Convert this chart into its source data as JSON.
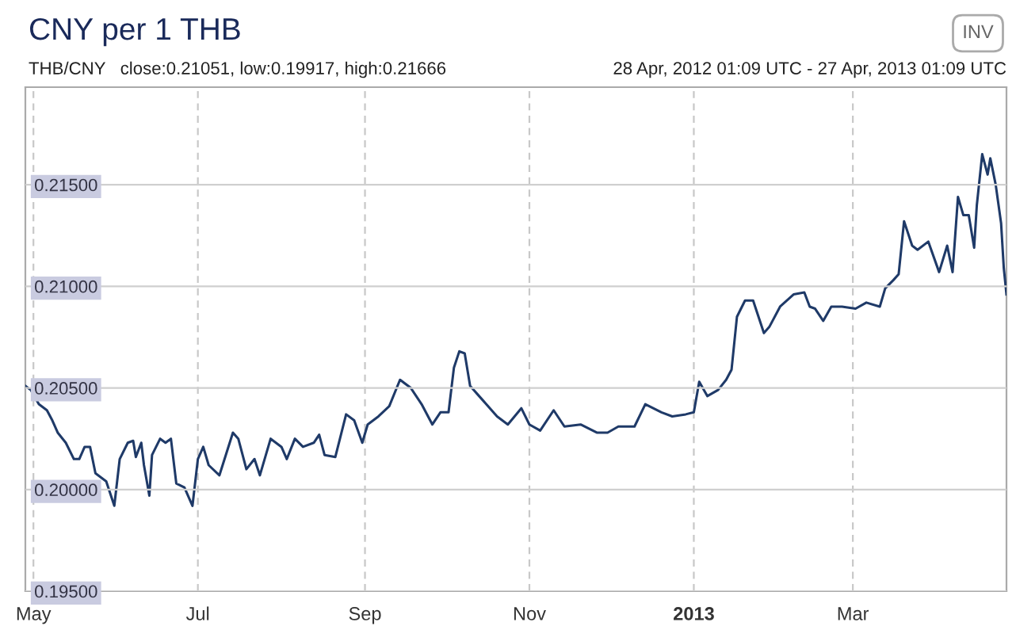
{
  "chart_data": {
    "type": "line",
    "title": "CNY per 1 THB",
    "subtitle": "THB/CNY   close:0.21051, low:0.19917, high:0.21666",
    "annotations": [
      "28 Apr, 2012 01:09 UTC - 27 Apr, 2013 01:09 UTC",
      "INV"
    ],
    "series": [
      {
        "color": "#1f3a68",
        "x": [
          "2012-04-28",
          "2012-04-30",
          "2012-05-03",
          "2012-05-06",
          "2012-05-08",
          "2012-05-10",
          "2012-05-13",
          "2012-05-16",
          "2012-05-18",
          "2012-05-20",
          "2012-05-22",
          "2012-05-24",
          "2012-05-28",
          "2012-05-31",
          "2012-06-02",
          "2012-06-05",
          "2012-06-07",
          "2012-06-08",
          "2012-06-10",
          "2012-06-11",
          "2012-06-13",
          "2012-06-14",
          "2012-06-17",
          "2012-06-19",
          "2012-06-21",
          "2012-06-23",
          "2012-06-26",
          "2012-06-29",
          "2012-07-01",
          "2012-07-03",
          "2012-07-05",
          "2012-07-09",
          "2012-07-14",
          "2012-07-16",
          "2012-07-19",
          "2012-07-22",
          "2012-07-24",
          "2012-07-28",
          "2012-08-01",
          "2012-08-03",
          "2012-08-06",
          "2012-08-09",
          "2012-08-13",
          "2012-08-15",
          "2012-08-17",
          "2012-08-21",
          "2012-08-25",
          "2012-08-28",
          "2012-08-31",
          "2012-09-02",
          "2012-09-06",
          "2012-09-10",
          "2012-09-14",
          "2012-09-18",
          "2012-09-22",
          "2012-09-26",
          "2012-09-29",
          "2012-10-02",
          "2012-10-04",
          "2012-10-06",
          "2012-10-08",
          "2012-10-10",
          "2012-10-14",
          "2012-10-20",
          "2012-10-24",
          "2012-10-29",
          "2012-11-01",
          "2012-11-05",
          "2012-11-10",
          "2012-11-14",
          "2012-11-20",
          "2012-11-26",
          "2012-11-30",
          "2012-12-04",
          "2012-12-10",
          "2012-12-14",
          "2012-12-20",
          "2012-12-24",
          "2012-12-29",
          "2013-01-01",
          "2013-01-03",
          "2013-01-06",
          "2013-01-10",
          "2013-01-13",
          "2013-01-15",
          "2013-01-17",
          "2013-01-20",
          "2013-01-23",
          "2013-01-25",
          "2013-01-27",
          "2013-01-29",
          "2013-02-02",
          "2013-02-07",
          "2013-02-11",
          "2013-02-13",
          "2013-02-15",
          "2013-02-18",
          "2013-02-21",
          "2013-02-25",
          "2013-03-02",
          "2013-03-06",
          "2013-03-11",
          "2013-03-13",
          "2013-03-16",
          "2013-03-18",
          "2013-03-20",
          "2013-03-23",
          "2013-03-25",
          "2013-03-29",
          "2013-04-02",
          "2013-04-05",
          "2013-04-07",
          "2013-04-09",
          "2013-04-11",
          "2013-04-13",
          "2013-04-15",
          "2013-04-16",
          "2013-04-18",
          "2013-04-20",
          "2013-04-21",
          "2013-04-23",
          "2013-04-25",
          "2013-04-26",
          "2013-04-27"
        ],
        "values": [
          0.2051,
          0.2049,
          0.2042,
          0.2039,
          0.2034,
          0.2028,
          0.2023,
          0.2015,
          0.2015,
          0.2021,
          0.2021,
          0.2008,
          0.2004,
          0.1992,
          0.2015,
          0.2023,
          0.2024,
          0.2016,
          0.2023,
          0.2012,
          0.1997,
          0.2017,
          0.2025,
          0.2023,
          0.2025,
          0.2003,
          0.2001,
          0.1992,
          0.2015,
          0.2021,
          0.2012,
          0.2007,
          0.2028,
          0.2025,
          0.201,
          0.2015,
          0.2007,
          0.2025,
          0.2021,
          0.2015,
          0.2025,
          0.2021,
          0.2023,
          0.2027,
          0.2017,
          0.2016,
          0.2037,
          0.2034,
          0.2023,
          0.2032,
          0.2036,
          0.2041,
          0.2054,
          0.205,
          0.2042,
          0.2032,
          0.2038,
          0.2038,
          0.206,
          0.2068,
          0.2067,
          0.2051,
          0.2045,
          0.2036,
          0.2032,
          0.204,
          0.2032,
          0.2029,
          0.2039,
          0.2031,
          0.2032,
          0.2028,
          0.2028,
          0.2031,
          0.2031,
          0.2042,
          0.2038,
          0.2036,
          0.2037,
          0.2038,
          0.2053,
          0.2046,
          0.2049,
          0.2054,
          0.2059,
          0.2085,
          0.2093,
          0.2093,
          0.2085,
          0.2077,
          0.208,
          0.209,
          0.2096,
          0.2097,
          0.209,
          0.2089,
          0.2083,
          0.209,
          0.209,
          0.2089,
          0.2092,
          0.209,
          0.2099,
          0.2103,
          0.2106,
          0.2132,
          0.212,
          0.2118,
          0.2122,
          0.2107,
          0.212,
          0.2107,
          0.2144,
          0.2135,
          0.2135,
          0.2119,
          0.214,
          0.2165,
          0.2155,
          0.2163,
          0.215,
          0.2131,
          0.2109,
          0.2096
        ]
      }
    ],
    "xlim": [
      "2012-04-28",
      "2013-04-27"
    ],
    "xticks": [
      {
        "value": "2012-05-01",
        "label": "May"
      },
      {
        "value": "2012-07-01",
        "label": "Jul"
      },
      {
        "value": "2012-09-01",
        "label": "Sep"
      },
      {
        "value": "2012-11-01",
        "label": "Nov"
      },
      {
        "value": "2013-01-01",
        "label": "2013"
      },
      {
        "value": "2013-03-01",
        "label": "Mar"
      }
    ],
    "ylim": [
      0.195,
      0.2198
    ],
    "yticks": [
      {
        "value": 0.195,
        "label": "0.19500"
      },
      {
        "value": 0.2,
        "label": "0.20000"
      },
      {
        "value": 0.205,
        "label": "0.20500"
      },
      {
        "value": 0.21,
        "label": "0.21000"
      },
      {
        "value": 0.215,
        "label": "0.21500"
      }
    ],
    "grid": true,
    "line_style": "solid"
  }
}
